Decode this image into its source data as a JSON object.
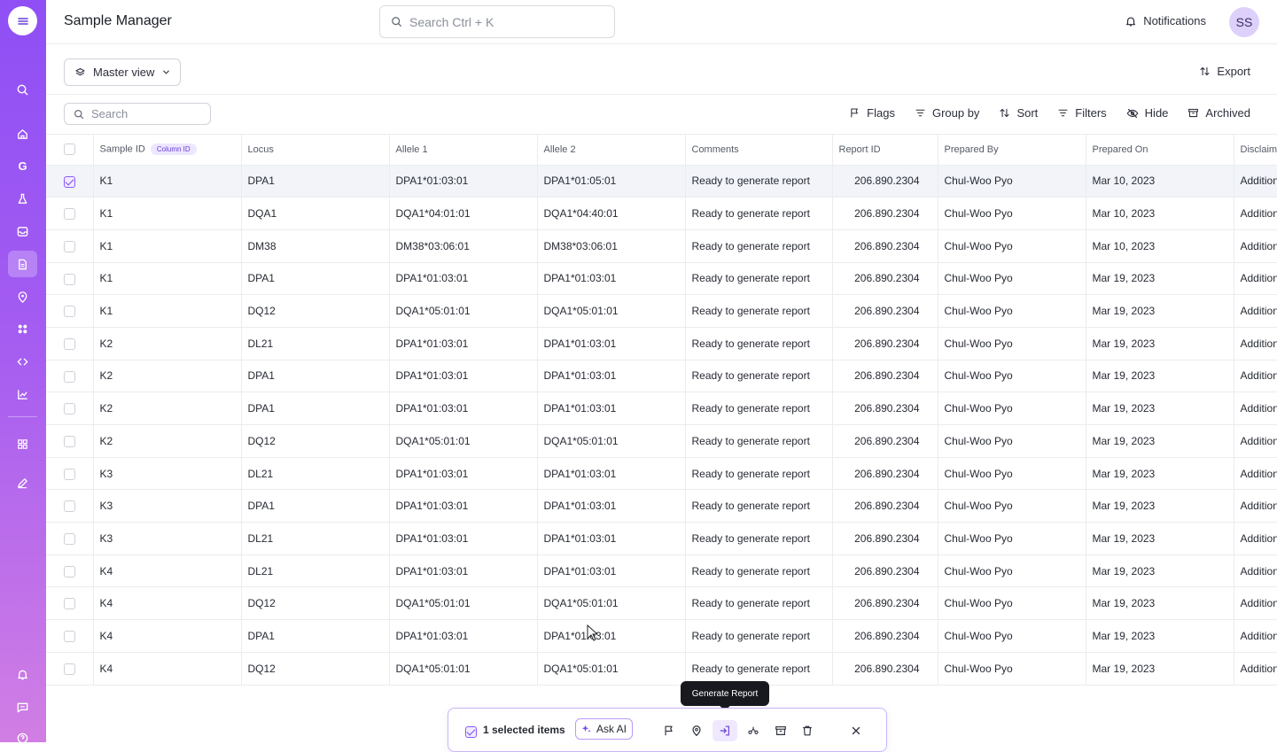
{
  "app": {
    "title": "Sample Manager"
  },
  "header": {
    "search_placeholder": "Search Ctrl + K",
    "notifications_label": "Notifications",
    "avatar_initials": "SS"
  },
  "viewbar": {
    "view_label": "Master view",
    "export_label": "Export"
  },
  "toolbar": {
    "search_placeholder": "Search",
    "flags": "Flags",
    "group_by": "Group by",
    "sort": "Sort",
    "filters": "Filters",
    "hide": "Hide",
    "archived": "Archived"
  },
  "table": {
    "columns": [
      "Sample ID",
      "Locus",
      "Allele 1",
      "Allele 2",
      "Comments",
      "Report ID",
      "Prepared By",
      "Prepared On",
      "Disclaim"
    ],
    "column_id_badge": "Column ID",
    "rows": [
      {
        "selected": true,
        "sample_id": "K1",
        "locus": "DPA1",
        "allele1": "DPA1*01:03:01",
        "allele2": "DPA1*01:05:01",
        "comments": "Ready to generate report",
        "report_id": "206.890.2304",
        "prepared_by": "Chul-Woo Pyo",
        "prepared_on": "Mar 10, 2023",
        "disclaimer": "Addition"
      },
      {
        "selected": false,
        "sample_id": "K1",
        "locus": "DQA1",
        "allele1": "DQA1*04:01:01",
        "allele2": "DQA1*04:40:01",
        "comments": "Ready to generate report",
        "report_id": "206.890.2304",
        "prepared_by": "Chul-Woo Pyo",
        "prepared_on": "Mar 10, 2023",
        "disclaimer": "Addition"
      },
      {
        "selected": false,
        "sample_id": "K1",
        "locus": "DM38",
        "allele1": "DM38*03:06:01",
        "allele2": "DM38*03:06:01",
        "comments": "Ready to generate report",
        "report_id": "206.890.2304",
        "prepared_by": "Chul-Woo Pyo",
        "prepared_on": "Mar 10, 2023",
        "disclaimer": "Addition"
      },
      {
        "selected": false,
        "sample_id": "K1",
        "locus": "DPA1",
        "allele1": "DPA1*01:03:01",
        "allele2": "DPA1*01:03:01",
        "comments": "Ready to generate report",
        "report_id": "206.890.2304",
        "prepared_by": "Chul-Woo Pyo",
        "prepared_on": "Mar 19, 2023",
        "disclaimer": "Addition"
      },
      {
        "selected": false,
        "sample_id": "K1",
        "locus": "DQ12",
        "allele1": "DQA1*05:01:01",
        "allele2": "DQA1*05:01:01",
        "comments": "Ready to generate report",
        "report_id": "206.890.2304",
        "prepared_by": "Chul-Woo Pyo",
        "prepared_on": "Mar 19, 2023",
        "disclaimer": "Addition"
      },
      {
        "selected": false,
        "sample_id": "K2",
        "locus": "DL21",
        "allele1": "DPA1*01:03:01",
        "allele2": "DPA1*01:03:01",
        "comments": "Ready to generate report",
        "report_id": "206.890.2304",
        "prepared_by": "Chul-Woo Pyo",
        "prepared_on": "Mar 19, 2023",
        "disclaimer": "Addition"
      },
      {
        "selected": false,
        "sample_id": "K2",
        "locus": "DPA1",
        "allele1": "DPA1*01:03:01",
        "allele2": "DPA1*01:03:01",
        "comments": "Ready to generate report",
        "report_id": "206.890.2304",
        "prepared_by": "Chul-Woo Pyo",
        "prepared_on": "Mar 19, 2023",
        "disclaimer": "Addition"
      },
      {
        "selected": false,
        "sample_id": "K2",
        "locus": "DPA1",
        "allele1": "DPA1*01:03:01",
        "allele2": "DPA1*01:03:01",
        "comments": "Ready to generate report",
        "report_id": "206.890.2304",
        "prepared_by": "Chul-Woo Pyo",
        "prepared_on": "Mar 19, 2023",
        "disclaimer": "Addition"
      },
      {
        "selected": false,
        "sample_id": "K2",
        "locus": "DQ12",
        "allele1": "DQA1*05:01:01",
        "allele2": "DQA1*05:01:01",
        "comments": "Ready to generate report",
        "report_id": "206.890.2304",
        "prepared_by": "Chul-Woo Pyo",
        "prepared_on": "Mar 19, 2023",
        "disclaimer": "Addition"
      },
      {
        "selected": false,
        "sample_id": "K3",
        "locus": "DL21",
        "allele1": "DPA1*01:03:01",
        "allele2": "DPA1*01:03:01",
        "comments": "Ready to generate report",
        "report_id": "206.890.2304",
        "prepared_by": "Chul-Woo Pyo",
        "prepared_on": "Mar 19, 2023",
        "disclaimer": "Addition"
      },
      {
        "selected": false,
        "sample_id": "K3",
        "locus": "DPA1",
        "allele1": "DPA1*01:03:01",
        "allele2": "DPA1*01:03:01",
        "comments": "Ready to generate report",
        "report_id": "206.890.2304",
        "prepared_by": "Chul-Woo Pyo",
        "prepared_on": "Mar 19, 2023",
        "disclaimer": "Addition"
      },
      {
        "selected": false,
        "sample_id": "K3",
        "locus": "DL21",
        "allele1": "DPA1*01:03:01",
        "allele2": "DPA1*01:03:01",
        "comments": "Ready to generate report",
        "report_id": "206.890.2304",
        "prepared_by": "Chul-Woo Pyo",
        "prepared_on": "Mar 19, 2023",
        "disclaimer": "Addition"
      },
      {
        "selected": false,
        "sample_id": "K4",
        "locus": "DL21",
        "allele1": "DPA1*01:03:01",
        "allele2": "DPA1*01:03:01",
        "comments": "Ready to generate report",
        "report_id": "206.890.2304",
        "prepared_by": "Chul-Woo Pyo",
        "prepared_on": "Mar 19, 2023",
        "disclaimer": "Addition"
      },
      {
        "selected": false,
        "sample_id": "K4",
        "locus": "DQ12",
        "allele1": "DQA1*05:01:01",
        "allele2": "DQA1*05:01:01",
        "comments": "Ready to generate report",
        "report_id": "206.890.2304",
        "prepared_by": "Chul-Woo Pyo",
        "prepared_on": "Mar 19, 2023",
        "disclaimer": "Addition"
      },
      {
        "selected": false,
        "sample_id": "K4",
        "locus": "DPA1",
        "allele1": "DPA1*01:03:01",
        "allele2": "DPA1*01:03:01",
        "comments": "Ready to generate report",
        "report_id": "206.890.2304",
        "prepared_by": "Chul-Woo Pyo",
        "prepared_on": "Mar 19, 2023",
        "disclaimer": "Addition"
      },
      {
        "selected": false,
        "sample_id": "K4",
        "locus": "DQ12",
        "allele1": "DQA1*05:01:01",
        "allele2": "DQA1*05:01:01",
        "comments": "Ready to generate report",
        "report_id": "206.890.2304",
        "prepared_by": "Chul-Woo Pyo",
        "prepared_on": "Mar 19, 2023",
        "disclaimer": "Addition"
      }
    ]
  },
  "sidebar": {
    "letter_item": "G",
    "icons": [
      "menu-icon",
      "search-icon",
      "home-icon",
      "g-icon",
      "flask-icon",
      "inbox-icon",
      "document-icon",
      "location-pin-icon",
      "apps-icon",
      "code-icon",
      "chart-icon",
      "grid-icon",
      "pen-icon",
      "bell-icon",
      "chat-icon",
      "help-icon"
    ]
  },
  "action_bar": {
    "selected_count_label": "1 selected items",
    "ask_ai_label": "Ask AI",
    "tooltip": "Generate Report",
    "icons": [
      "flag-icon",
      "location-pin-icon",
      "generate-report-icon",
      "merge-icon",
      "archive-icon",
      "trash-icon",
      "close-icon"
    ]
  },
  "colors": {
    "accent": "#8f4ff5",
    "rail_gradient_end": "#d17ee4",
    "selected_row": "#f2f4fa"
  }
}
